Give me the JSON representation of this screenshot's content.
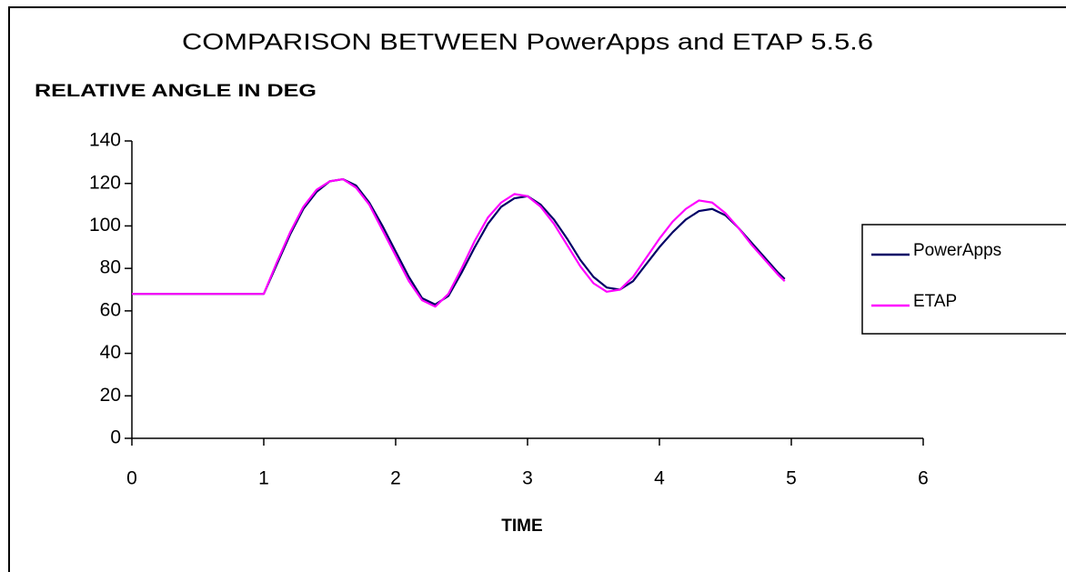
{
  "chart_data": {
    "type": "line",
    "title": "COMPARISON BETWEEN PowerApps and ETAP 5.5.6",
    "y_label": "RELATIVE ANGLE IN DEG",
    "x_label": "TIME",
    "x": [
      0,
      1,
      1.1,
      1.2,
      1.3,
      1.4,
      1.5,
      1.6,
      1.7,
      1.8,
      1.9,
      2.0,
      2.1,
      2.2,
      2.3,
      2.4,
      2.5,
      2.6,
      2.7,
      2.8,
      2.9,
      3.0,
      3.1,
      3.2,
      3.3,
      3.4,
      3.5,
      3.6,
      3.7,
      3.8,
      3.9,
      4.0,
      4.1,
      4.2,
      4.3,
      4.4,
      4.5,
      4.6,
      4.7,
      4.8,
      4.9,
      4.95
    ],
    "series": [
      {
        "name": "PowerApps",
        "color": "#000066",
        "values": [
          68,
          68,
          82,
          96,
          108,
          116,
          121,
          122,
          119,
          111,
          100,
          88,
          76,
          66,
          63,
          67,
          78,
          90,
          101,
          109,
          113,
          114,
          110,
          103,
          94,
          84,
          76,
          71,
          70,
          74,
          82,
          90,
          97,
          103,
          107,
          108,
          105,
          99,
          92,
          85,
          78,
          75
        ]
      },
      {
        "name": "ETAP",
        "color": "#ff00ff",
        "values": [
          68,
          68,
          83,
          97,
          109,
          117,
          121,
          122,
          118,
          110,
          98,
          86,
          74,
          65,
          62,
          68,
          80,
          93,
          104,
          111,
          115,
          114,
          109,
          101,
          91,
          81,
          73,
          69,
          70,
          76,
          85,
          94,
          102,
          108,
          112,
          111,
          106,
          99,
          91,
          84,
          77,
          74
        ]
      }
    ],
    "xlim": [
      0,
      6
    ],
    "xticks": [
      0,
      1,
      2,
      3,
      4,
      5,
      6
    ],
    "ylim": [
      0,
      140
    ],
    "yticks": [
      0,
      20,
      40,
      60,
      80,
      100,
      120,
      140
    ],
    "legend": "right"
  }
}
